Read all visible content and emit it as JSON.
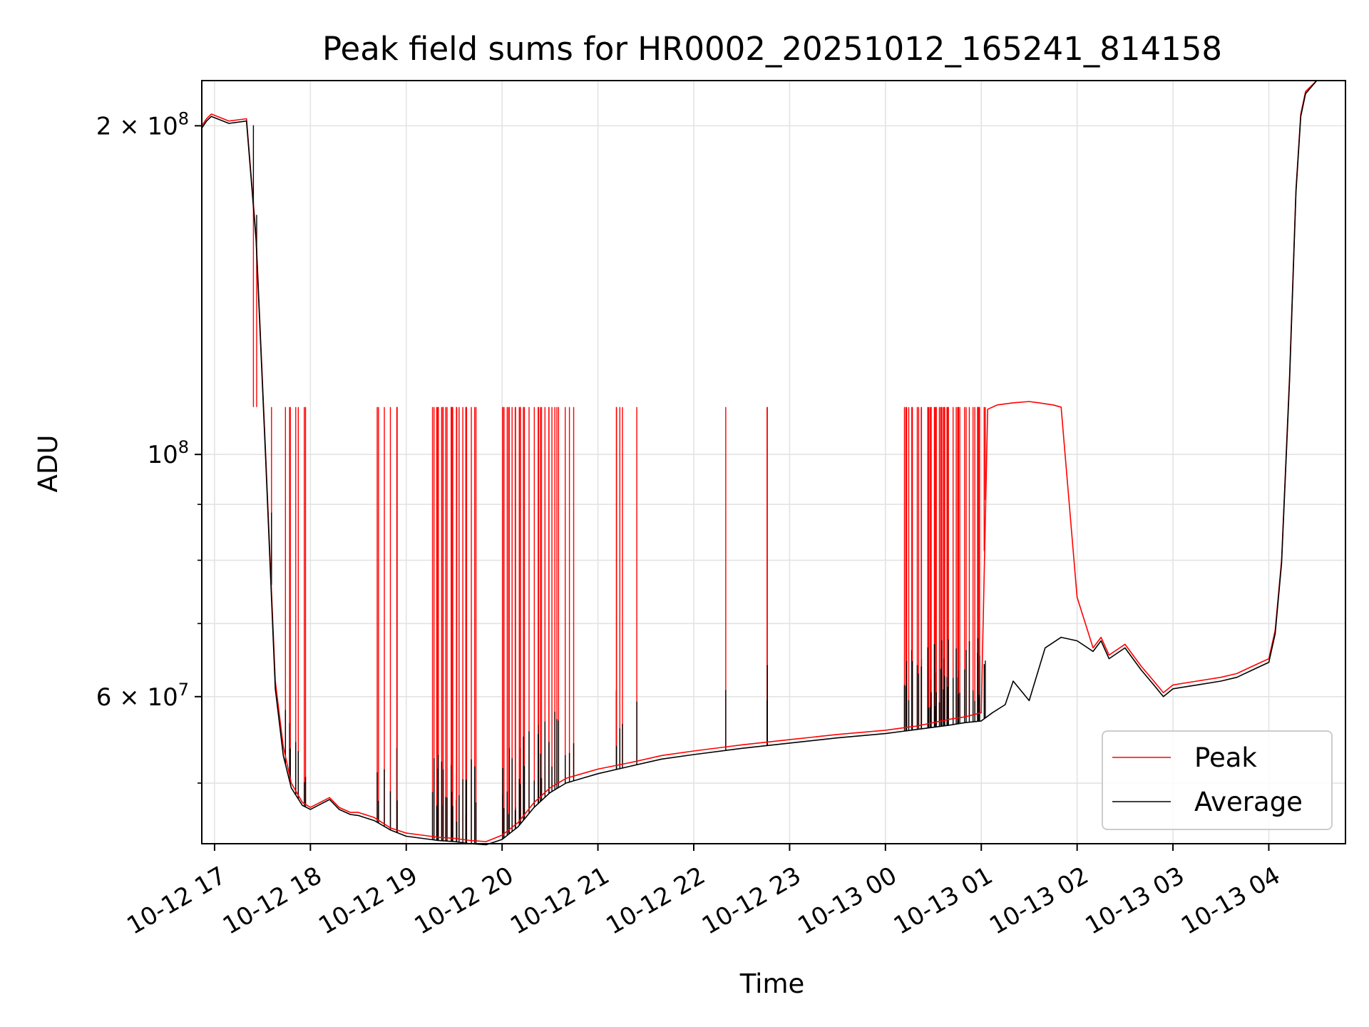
{
  "chart_data": {
    "type": "line",
    "title": "Peak field sums for HR0002_20251012_165241_814158",
    "xlabel": "Time",
    "ylabel": "ADU",
    "yscale": "log",
    "xlim": [
      "2025-10-12 16:52",
      "2025-10-13 04:48"
    ],
    "ylim": [
      44000000,
      220000000
    ],
    "grid": true,
    "legend_position": "lower-right",
    "x_ticks": [
      {
        "value": "2025-10-12 17:00",
        "label": "10-12 17"
      },
      {
        "value": "2025-10-12 18:00",
        "label": "10-12 18"
      },
      {
        "value": "2025-10-12 19:00",
        "label": "10-12 19"
      },
      {
        "value": "2025-10-12 20:00",
        "label": "10-12 20"
      },
      {
        "value": "2025-10-12 21:00",
        "label": "10-12 21"
      },
      {
        "value": "2025-10-12 22:00",
        "label": "10-12 22"
      },
      {
        "value": "2025-10-12 23:00",
        "label": "10-12 23"
      },
      {
        "value": "2025-10-13 00:00",
        "label": "10-13 00"
      },
      {
        "value": "2025-10-13 01:00",
        "label": "10-13 01"
      },
      {
        "value": "2025-10-13 02:00",
        "label": "10-13 02"
      },
      {
        "value": "2025-10-13 03:00",
        "label": "10-13 03"
      },
      {
        "value": "2025-10-13 04:00",
        "label": "10-13 04"
      }
    ],
    "y_ticks": [
      {
        "value": 60000000,
        "base": "6 × 10",
        "exp": "7"
      },
      {
        "value": 100000000,
        "base": "10",
        "exp": "8"
      },
      {
        "value": 200000000,
        "base": "2 × 10",
        "exp": "8"
      }
    ],
    "y_minor_ticks": [
      50000000,
      70000000,
      80000000,
      90000000
    ],
    "series": [
      {
        "name": "Peak",
        "color": "#ff0000",
        "x": [
          "2025-10-12 16:52",
          "2025-10-12 16:55",
          "2025-10-12 16:58",
          "2025-10-12 17:09",
          "2025-10-12 17:20",
          "2025-10-12 17:26",
          "2025-10-12 17:32",
          "2025-10-12 17:38",
          "2025-10-12 17:43",
          "2025-10-12 17:48",
          "2025-10-12 17:55",
          "2025-10-12 18:00",
          "2025-10-12 18:06",
          "2025-10-12 18:12",
          "2025-10-12 18:18",
          "2025-10-12 18:25",
          "2025-10-12 18:30",
          "2025-10-12 18:40",
          "2025-10-12 18:50",
          "2025-10-12 19:00",
          "2025-10-12 19:10",
          "2025-10-12 19:20",
          "2025-10-12 19:30",
          "2025-10-12 19:40",
          "2025-10-12 19:50",
          "2025-10-12 20:00",
          "2025-10-12 20:10",
          "2025-10-12 20:20",
          "2025-10-12 20:30",
          "2025-10-12 20:40",
          "2025-10-12 20:50",
          "2025-10-12 21:00",
          "2025-10-12 21:20",
          "2025-10-12 21:40",
          "2025-10-12 22:00",
          "2025-10-12 22:30",
          "2025-10-12 23:00",
          "2025-10-12 23:30",
          "2025-10-13 00:00",
          "2025-10-13 00:20",
          "2025-10-13 00:40",
          "2025-10-13 00:50",
          "2025-10-13 01:00",
          "2025-10-13 01:04",
          "2025-10-13 01:10",
          "2025-10-13 01:20",
          "2025-10-13 01:30",
          "2025-10-13 01:36",
          "2025-10-13 01:45",
          "2025-10-13 01:50",
          "2025-10-13 02:00",
          "2025-10-13 02:10",
          "2025-10-13 02:15",
          "2025-10-13 02:20",
          "2025-10-13 02:30",
          "2025-10-13 02:40",
          "2025-10-13 02:48",
          "2025-10-13 02:54",
          "2025-10-13 03:00",
          "2025-10-13 03:15",
          "2025-10-13 03:30",
          "2025-10-13 03:40",
          "2025-10-13 03:50",
          "2025-10-13 04:00",
          "2025-10-13 04:04",
          "2025-10-13 04:08",
          "2025-10-13 04:13",
          "2025-10-13 04:17",
          "2025-10-13 04:20",
          "2025-10-13 04:23",
          "2025-10-13 04:30",
          "2025-10-13 04:48"
        ],
        "y": [
          200000000,
          203000000,
          205000000,
          202000000,
          203000000,
          158000000,
          100000000,
          62000000,
          54000000,
          50000000,
          48000000,
          47500000,
          48000000,
          48500000,
          47500000,
          47000000,
          47000000,
          46500000,
          45500000,
          45000000,
          44800000,
          44600000,
          44500000,
          44300000,
          44200000,
          44800000,
          46000000,
          48000000,
          49500000,
          50500000,
          51000000,
          51500000,
          52200000,
          53000000,
          53500000,
          54200000,
          54800000,
          55400000,
          55900000,
          56400000,
          57200000,
          57500000,
          58000000,
          110000000,
          111000000,
          111500000,
          111800000,
          111500000,
          111000000,
          110500000,
          74000000,
          66500000,
          68000000,
          65500000,
          67000000,
          64000000,
          62000000,
          60500000,
          61500000,
          62000000,
          62500000,
          63000000,
          64000000,
          65000000,
          69000000,
          80000000,
          118000000,
          175000000,
          205000000,
          215000000,
          220000000,
          220000000
        ]
      },
      {
        "name": "Average",
        "color": "#000000",
        "x": [
          "2025-10-12 16:52",
          "2025-10-12 16:55",
          "2025-10-12 16:58",
          "2025-10-12 17:09",
          "2025-10-12 17:20",
          "2025-10-12 17:26",
          "2025-10-12 17:32",
          "2025-10-12 17:38",
          "2025-10-12 17:43",
          "2025-10-12 17:48",
          "2025-10-12 17:55",
          "2025-10-12 18:00",
          "2025-10-12 18:06",
          "2025-10-12 18:12",
          "2025-10-12 18:18",
          "2025-10-12 18:25",
          "2025-10-12 18:30",
          "2025-10-12 18:40",
          "2025-10-12 18:50",
          "2025-10-12 19:00",
          "2025-10-12 19:10",
          "2025-10-12 19:20",
          "2025-10-12 19:30",
          "2025-10-12 19:40",
          "2025-10-12 19:50",
          "2025-10-12 20:00",
          "2025-10-12 20:10",
          "2025-10-12 20:20",
          "2025-10-12 20:30",
          "2025-10-12 20:40",
          "2025-10-12 20:50",
          "2025-10-12 21:00",
          "2025-10-12 21:20",
          "2025-10-12 21:40",
          "2025-10-12 22:00",
          "2025-10-12 22:30",
          "2025-10-12 23:00",
          "2025-10-12 23:30",
          "2025-10-13 00:00",
          "2025-10-13 00:20",
          "2025-10-13 00:40",
          "2025-10-13 00:50",
          "2025-10-13 01:00",
          "2025-10-13 01:07",
          "2025-10-13 01:15",
          "2025-10-13 01:20",
          "2025-10-13 01:30",
          "2025-10-13 01:40",
          "2025-10-13 01:50",
          "2025-10-13 02:00",
          "2025-10-13 02:10",
          "2025-10-13 02:15",
          "2025-10-13 02:20",
          "2025-10-13 02:30",
          "2025-10-13 02:40",
          "2025-10-13 02:48",
          "2025-10-13 02:54",
          "2025-10-13 03:00",
          "2025-10-13 03:15",
          "2025-10-13 03:30",
          "2025-10-13 03:40",
          "2025-10-13 03:50",
          "2025-10-13 04:00",
          "2025-10-13 04:04",
          "2025-10-13 04:08",
          "2025-10-13 04:13",
          "2025-10-13 04:17",
          "2025-10-13 04:20",
          "2025-10-13 04:23",
          "2025-10-13 04:30",
          "2025-10-13 04:48"
        ],
        "y": [
          199000000,
          202000000,
          204000000,
          201000000,
          202000000,
          157000000,
          99000000,
          61000000,
          53000000,
          49500000,
          47700000,
          47300000,
          47800000,
          48300000,
          47300000,
          46800000,
          46700000,
          46200000,
          45300000,
          44700000,
          44500000,
          44300000,
          44200000,
          44000000,
          43900000,
          44400000,
          45600000,
          47500000,
          49000000,
          50000000,
          50500000,
          51000000,
          51800000,
          52600000,
          53100000,
          53800000,
          54400000,
          55000000,
          55500000,
          56000000,
          56500000,
          56800000,
          57000000,
          58000000,
          59000000,
          62000000,
          59500000,
          66500000,
          68000000,
          67500000,
          66000000,
          67500000,
          65000000,
          66500000,
          63500000,
          61500000,
          60000000,
          61000000,
          61500000,
          62000000,
          62500000,
          63500000,
          64500000,
          68500000,
          79500000,
          117000000,
          174000000,
          204000000,
          214000000,
          220000000,
          220000000
        ]
      }
    ]
  }
}
